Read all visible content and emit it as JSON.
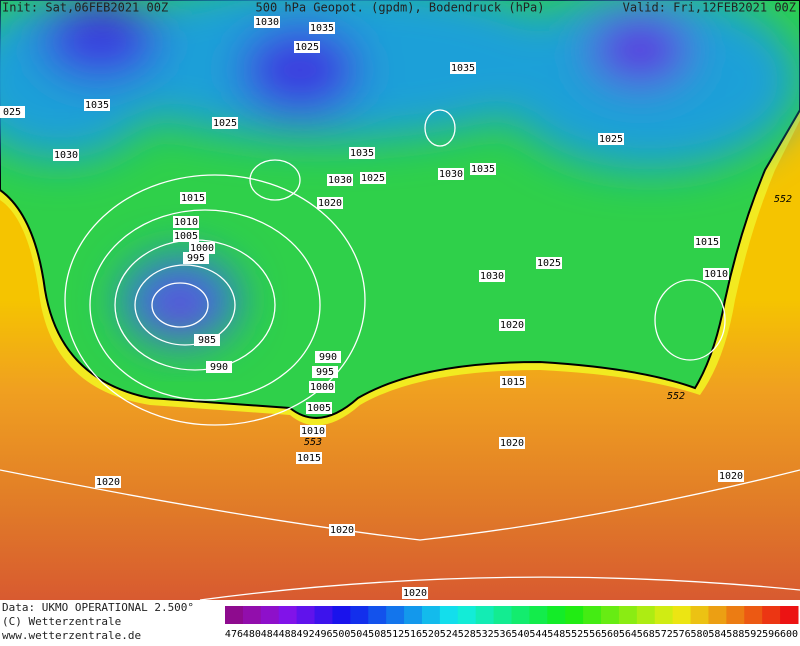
{
  "header": {
    "init": "Init: Sat,06FEB2021 00Z",
    "title": "500 hPa Geopot. (gpdm), Bodendruck (hPa)",
    "valid": "Valid: Fri,12FEB2021 00Z"
  },
  "isobar_labels": [
    "1030",
    "1035",
    "1025",
    "1035",
    "1035",
    "025",
    "1025",
    "1030",
    "1035",
    "1030",
    "1025",
    "1030",
    "1035",
    "1025",
    "1015",
    "1020",
    "1010",
    "1005",
    "1000",
    "995",
    "1030",
    "1025",
    "1015",
    "1010",
    "985",
    "990",
    "990",
    "995",
    "1000",
    "1005",
    "1020",
    "1015",
    "1010",
    "1015",
    "1020",
    "1020",
    "1020",
    "1020",
    "1020"
  ],
  "geopot_labels": [
    "552",
    "552",
    "553"
  ],
  "colorbar": {
    "ticks": [
      476,
      480,
      484,
      488,
      492,
      496,
      500,
      504,
      508,
      512,
      516,
      520,
      524,
      528,
      532,
      536,
      540,
      544,
      548,
      552,
      556,
      560,
      564,
      568,
      572,
      576,
      580,
      584,
      588,
      592,
      596,
      600
    ]
  },
  "footer": {
    "data": "Data: UKMO OPERATIONAL 2.500°",
    "copyright": "(C) Wetterzentrale",
    "url": "www.wetterzentrale.de"
  }
}
